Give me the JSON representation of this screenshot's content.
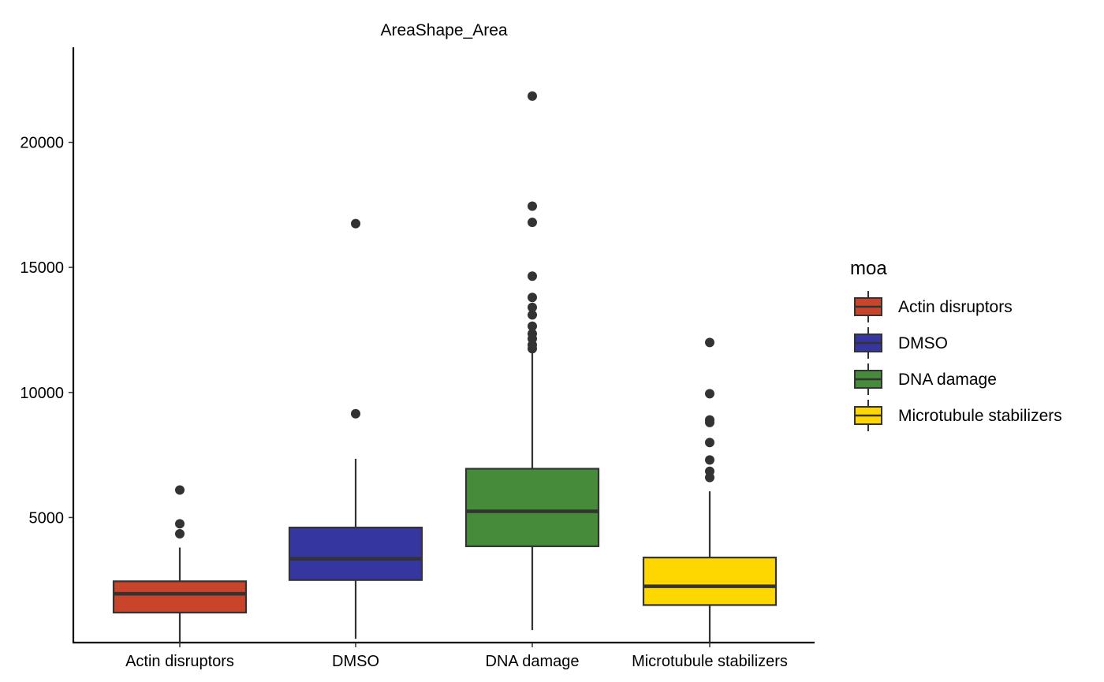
{
  "chart_data": {
    "type": "boxplot",
    "title": "AreaShape_Area",
    "xlabel": "",
    "ylabel": "",
    "categories": [
      "Actin disruptors",
      "DMSO",
      "DNA damage",
      "Microtubule stabilizers"
    ],
    "y_ticks": [
      5000,
      10000,
      15000,
      20000
    ],
    "y_tick_labels": [
      "5000",
      "10000",
      "15000",
      "20000"
    ],
    "ylim": [
      0,
      23800
    ],
    "grid": false,
    "legend": {
      "title": "moa",
      "position": "right",
      "entries": [
        "Actin disruptors",
        "DMSO",
        "DNA damage",
        "Microtubule stabilizers"
      ]
    },
    "colors": {
      "Actin disruptors": "#C8442A",
      "DMSO": "#3636A0",
      "DNA damage": "#458B3A",
      "Microtubule stabilizers": "#FFD700",
      "outline": "#333333",
      "outlier": "#333333"
    },
    "boxes": [
      {
        "name": "Actin disruptors",
        "whisker_low": 0,
        "q1": 1200,
        "median": 1950,
        "q3": 2450,
        "whisker_high": 3800,
        "outliers": [
          4350,
          4750,
          6100
        ]
      },
      {
        "name": "DMSO",
        "whisker_low": 150,
        "q1": 2500,
        "median": 3350,
        "q3": 4600,
        "whisker_high": 7350,
        "outliers": [
          9150,
          16750
        ]
      },
      {
        "name": "DNA damage",
        "whisker_low": 500,
        "q1": 3850,
        "median": 5250,
        "q3": 6950,
        "whisker_high": 11600,
        "outliers": [
          11750,
          11900,
          12150,
          12350,
          12650,
          13100,
          13400,
          13800,
          14650,
          16800,
          17450,
          21850
        ]
      },
      {
        "name": "Microtubule stabilizers",
        "whisker_low": 0,
        "q1": 1500,
        "median": 2250,
        "q3": 3400,
        "whisker_high": 6050,
        "outliers": [
          6600,
          6850,
          7300,
          8000,
          8800,
          8900,
          9950,
          12000
        ]
      }
    ]
  }
}
